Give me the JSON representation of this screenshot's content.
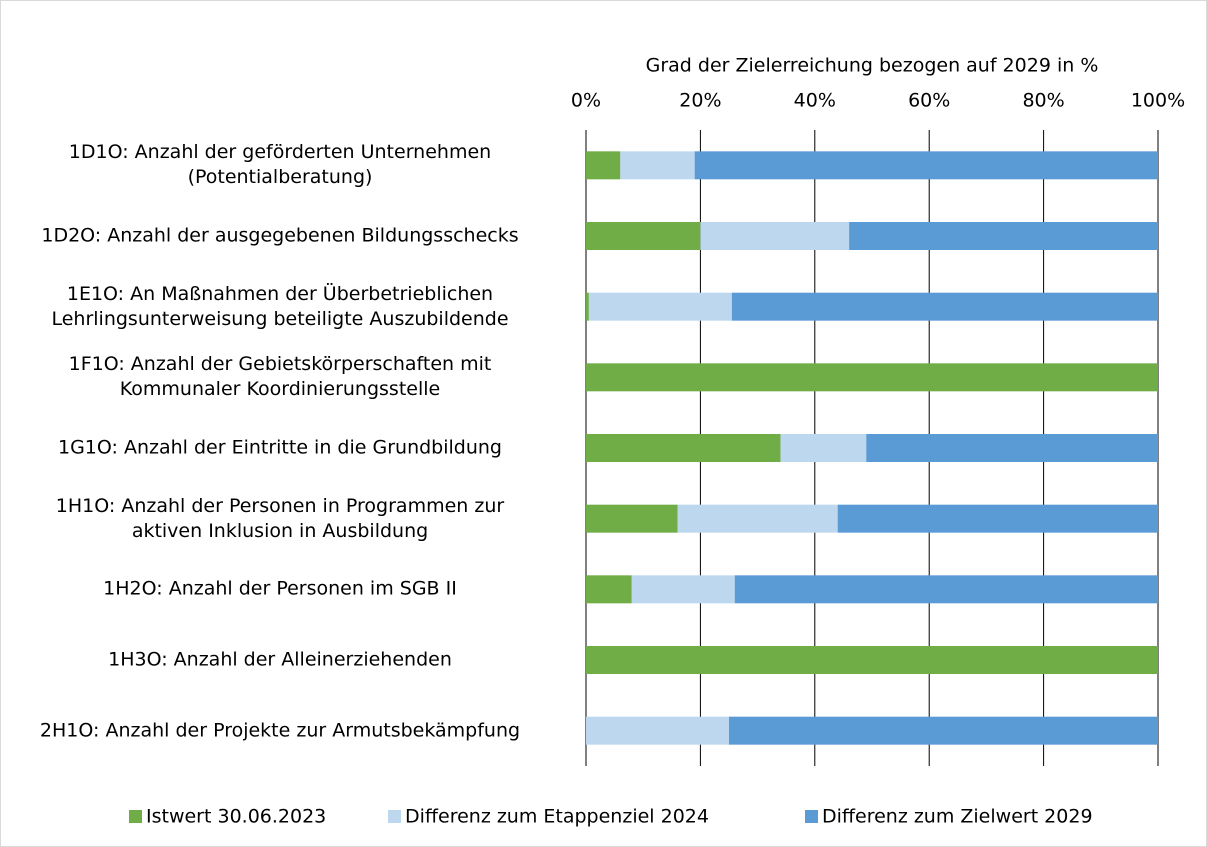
{
  "chart_data": {
    "type": "stacked-barh",
    "title": "Grad der Zielerreichung bezogen auf 2029 in %",
    "categories": [
      "1D1O: Anzahl der geförderten Unternehmen\n(Potentialberatung)",
      "1D2O: Anzahl der ausgegebenen Bildungsschecks",
      "1E1O: An Maßnahmen der Überbetrieblichen\nLehrlingsunterweisung beteiligte Auszubildende",
      "1F1O: Anzahl der Gebietskörperschaften mit\nKommunaler Koordinierungsstelle",
      "1G1O: Anzahl der Eintritte in die Grundbildung",
      "1H1O: Anzahl der Personen in Programmen zur\naktiven Inklusion in Ausbildung",
      "1H2O: Anzahl der Personen im SGB II",
      "1H3O: Anzahl der Alleinerziehenden",
      "2H1O: Anzahl der Projekte zur Armutsbekämpfung"
    ],
    "series": [
      {
        "name": "Istwert 30.06.2023",
        "color": "#70ad47",
        "values": [
          6,
          20,
          0.5,
          100,
          34,
          16,
          8,
          100,
          0
        ]
      },
      {
        "name": "Differenz zum Etappenziel 2024",
        "color": "#bdd7ee",
        "values": [
          13,
          26,
          25,
          0,
          15,
          28,
          18,
          0,
          25
        ]
      },
      {
        "name": "Differenz zum Zielwert 2029",
        "color": "#5b9bd5",
        "values": [
          81,
          54,
          74.5,
          0,
          51,
          56,
          74,
          0,
          75
        ]
      }
    ],
    "xlim": [
      0,
      100
    ],
    "xticks": [
      {
        "value": 0,
        "label": "0%"
      },
      {
        "value": 20,
        "label": "20%"
      },
      {
        "value": 40,
        "label": "40%"
      },
      {
        "value": 60,
        "label": "60%"
      },
      {
        "value": 80,
        "label": "80%"
      },
      {
        "value": 100,
        "label": "100%"
      }
    ],
    "grid": true,
    "legend": "bottom"
  }
}
